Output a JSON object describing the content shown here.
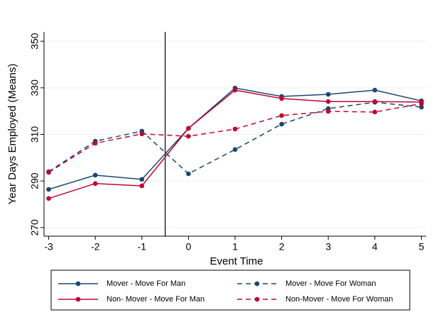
{
  "chart_data": {
    "type": "line",
    "xlabel": "Event Time",
    "ylabel": "Year Days Employed (Means)",
    "x": [
      -3,
      -2,
      -1,
      0,
      1,
      2,
      3,
      4,
      5
    ],
    "xlim": [
      -3.1,
      5.1
    ],
    "xticks": [
      -3,
      -2,
      -1,
      0,
      1,
      2,
      3,
      4,
      5
    ],
    "ylim": [
      266.3,
      354
    ],
    "yticks": [
      270,
      290,
      310,
      330,
      350
    ],
    "grid": true,
    "vline": -0.5,
    "series": [
      {
        "name": "Mover - Move For Man",
        "color": "#1a476f",
        "dashed": false,
        "values": [
          286.4,
          292.5,
          290.7,
          312.6,
          329.9,
          326.3,
          327.2,
          329.0,
          324.4
        ]
      },
      {
        "name": "Mover - Move For Woman",
        "color": "#1a476f",
        "dashed": true,
        "values": [
          294.0,
          307.1,
          311.4,
          293.1,
          303.5,
          314.4,
          321.1,
          323.8,
          321.7
        ]
      },
      {
        "name": "Non- Mover - Move For Man",
        "color": "#c10534",
        "dashed": false,
        "values": [
          282.5,
          288.9,
          287.9,
          312.6,
          329.0,
          325.4,
          324.1,
          324.1,
          323.9
        ]
      },
      {
        "name": "Non-Mover - Move For Woman",
        "color": "#c10534",
        "dashed": true,
        "values": [
          293.7,
          306.2,
          310.2,
          309.2,
          312.3,
          318.1,
          319.9,
          319.6,
          323.2
        ]
      }
    ]
  }
}
